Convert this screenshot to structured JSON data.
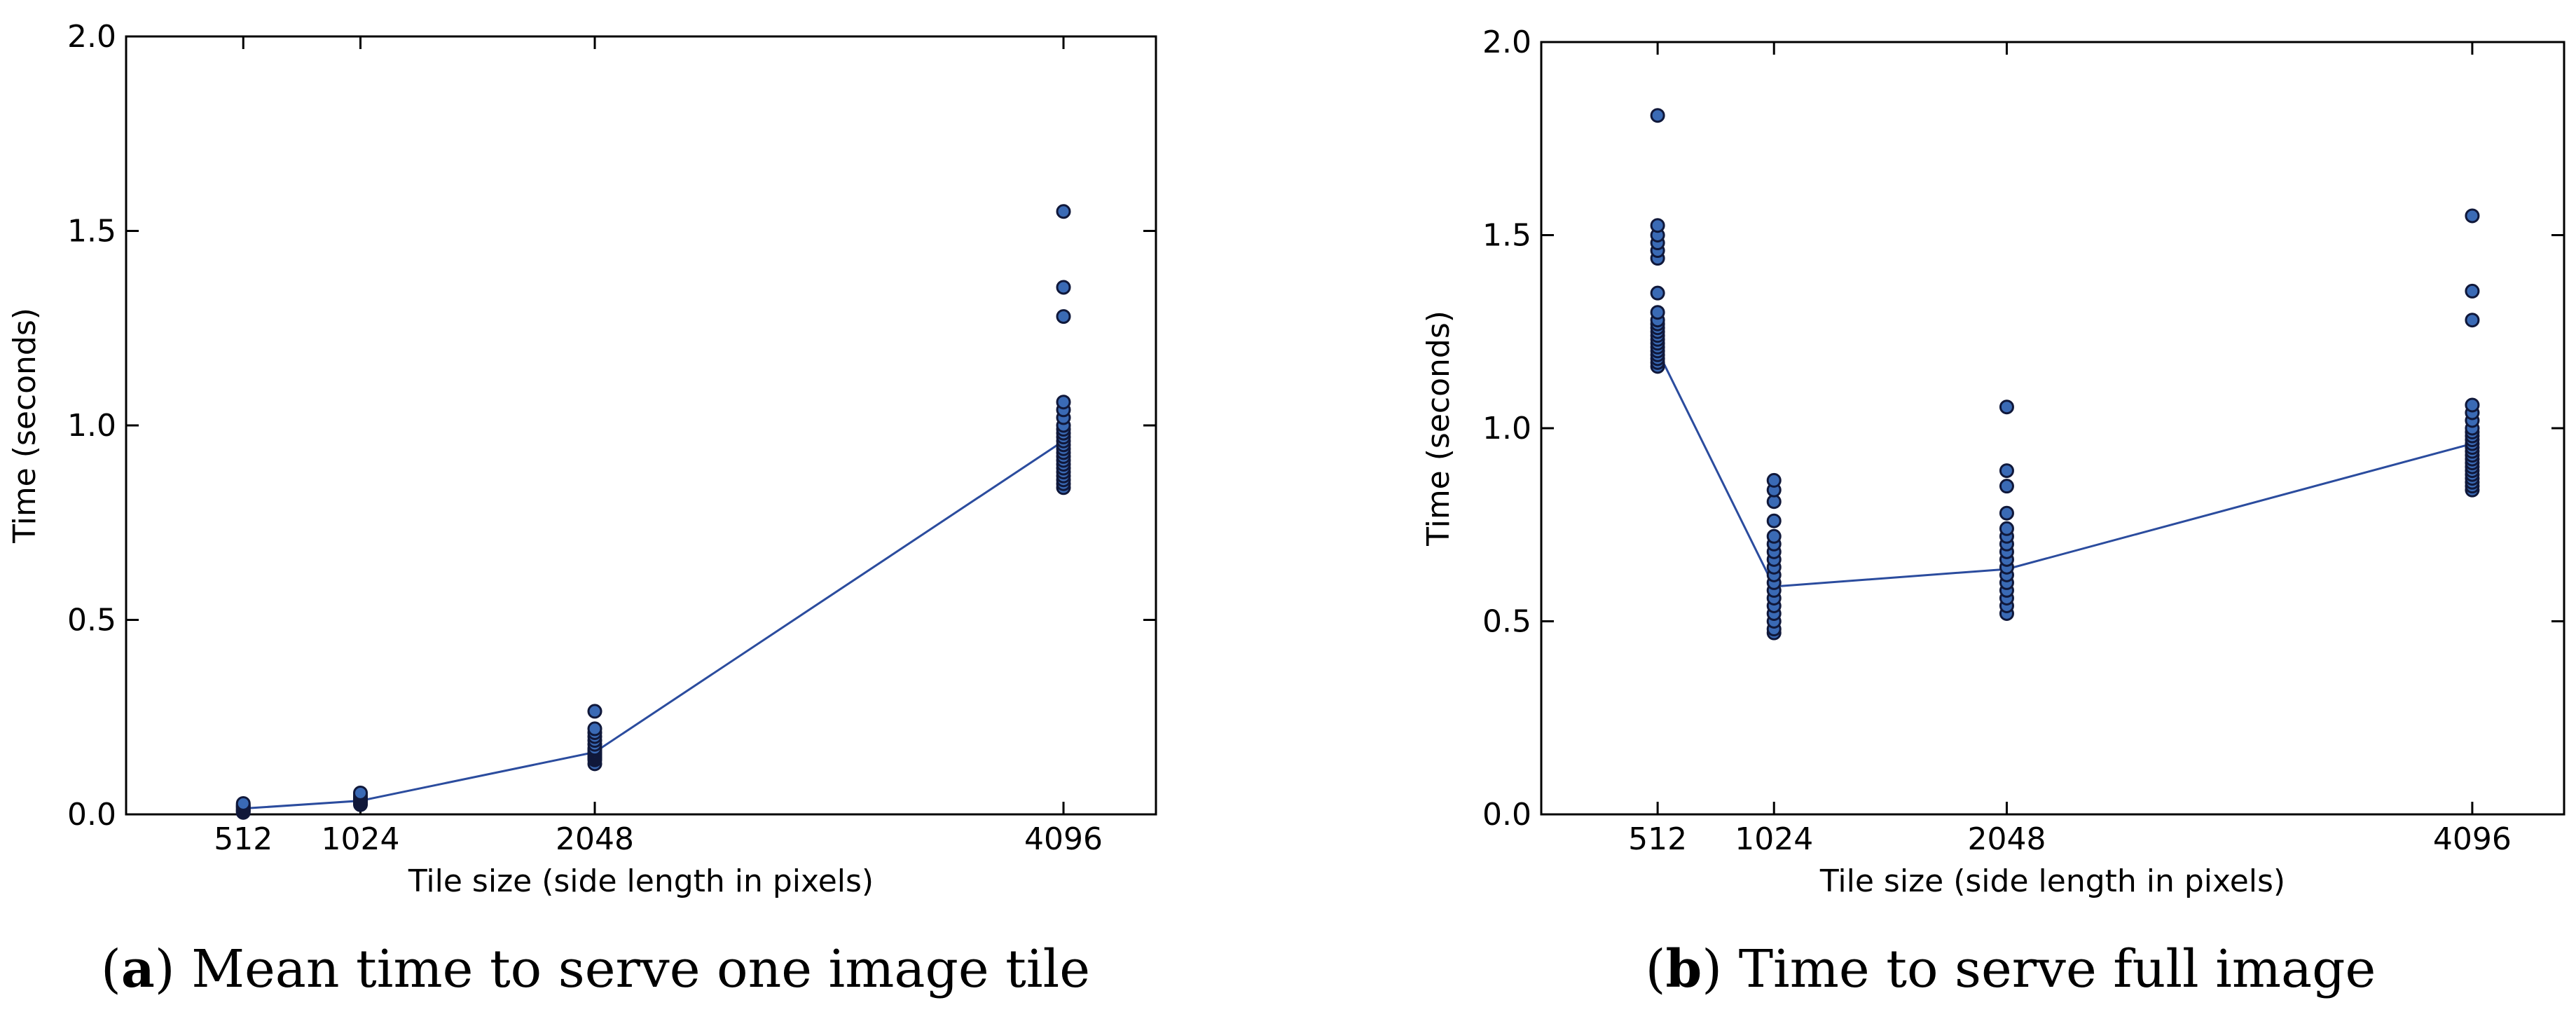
{
  "chart_data": [
    {
      "type": "scatter",
      "caption_letter": "a",
      "caption_text": "Mean time to serve one image tile",
      "xlabel": "Tile size (side length in pixels)",
      "ylabel": "Time (seconds)",
      "x_ticks": [
        512,
        1024,
        2048,
        4096
      ],
      "xlim": [
        0,
        4500
      ],
      "y_ticks": [
        "0.0",
        "0.5",
        "1.0",
        "1.5",
        "2.0"
      ],
      "ylim": [
        0,
        2.0
      ],
      "grid": false,
      "legend": "none",
      "mean_line": {
        "x": [
          512,
          1024,
          2048,
          4096
        ],
        "y": [
          0.015,
          0.035,
          0.16,
          0.96
        ]
      },
      "points": [
        {
          "x": 512,
          "y": [
            0.005,
            0.008,
            0.01,
            0.012,
            0.015,
            0.018,
            0.02,
            0.022,
            0.025,
            0.028
          ]
        },
        {
          "x": 1024,
          "y": [
            0.025,
            0.028,
            0.03,
            0.033,
            0.035,
            0.038,
            0.04,
            0.042,
            0.045,
            0.05,
            0.055
          ]
        },
        {
          "x": 2048,
          "y": [
            0.13,
            0.14,
            0.145,
            0.15,
            0.155,
            0.16,
            0.165,
            0.17,
            0.18,
            0.19,
            0.2,
            0.21,
            0.22,
            0.265
          ]
        },
        {
          "x": 4096,
          "y": [
            0.84,
            0.85,
            0.86,
            0.87,
            0.88,
            0.89,
            0.9,
            0.91,
            0.92,
            0.93,
            0.94,
            0.95,
            0.96,
            0.97,
            0.98,
            0.99,
            1.0,
            1.02,
            1.04,
            1.06,
            1.28,
            1.355,
            1.55
          ]
        }
      ]
    },
    {
      "type": "scatter",
      "caption_letter": "b",
      "caption_text": "Time to serve full image",
      "xlabel": "Tile size (side length in pixels)",
      "ylabel": "Time (seconds)",
      "x_ticks": [
        512,
        1024,
        2048,
        4096
      ],
      "xlim": [
        0,
        4500
      ],
      "y_ticks": [
        "0.0",
        "0.5",
        "1.0",
        "1.5",
        "2.0"
      ],
      "ylim": [
        0,
        2.0
      ],
      "grid": false,
      "legend": "none",
      "mean_line": {
        "x": [
          512,
          1024,
          2048,
          4096
        ],
        "y": [
          1.2,
          0.59,
          0.635,
          0.96
        ]
      },
      "points": [
        {
          "x": 512,
          "y": [
            1.16,
            1.17,
            1.18,
            1.19,
            1.2,
            1.21,
            1.22,
            1.23,
            1.24,
            1.25,
            1.26,
            1.27,
            1.28,
            1.3,
            1.35,
            1.44,
            1.46,
            1.48,
            1.5,
            1.525,
            1.81
          ]
        },
        {
          "x": 1024,
          "y": [
            0.47,
            0.48,
            0.5,
            0.52,
            0.54,
            0.56,
            0.58,
            0.6,
            0.62,
            0.64,
            0.66,
            0.68,
            0.7,
            0.72,
            0.76,
            0.81,
            0.84,
            0.865
          ]
        },
        {
          "x": 2048,
          "y": [
            0.52,
            0.54,
            0.56,
            0.58,
            0.6,
            0.62,
            0.64,
            0.66,
            0.68,
            0.7,
            0.72,
            0.74,
            0.78,
            0.85,
            0.89,
            1.055
          ]
        },
        {
          "x": 4096,
          "y": [
            0.84,
            0.85,
            0.86,
            0.87,
            0.88,
            0.89,
            0.9,
            0.91,
            0.92,
            0.93,
            0.94,
            0.95,
            0.96,
            0.97,
            0.98,
            0.99,
            1.0,
            1.02,
            1.04,
            1.06,
            1.28,
            1.355,
            1.55
          ]
        }
      ]
    }
  ]
}
